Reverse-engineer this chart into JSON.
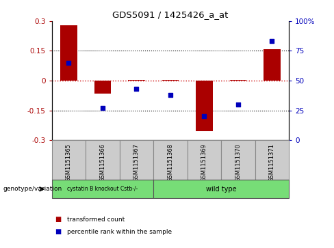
{
  "title": "GDS5091 / 1425426_a_at",
  "samples": [
    "GSM1151365",
    "GSM1151366",
    "GSM1151367",
    "GSM1151368",
    "GSM1151369",
    "GSM1151370",
    "GSM1151371"
  ],
  "bar_values": [
    0.28,
    -0.065,
    0.002,
    0.005,
    -0.255,
    0.003,
    0.16
  ],
  "dot_values": [
    65,
    27,
    43,
    38,
    20,
    30,
    83
  ],
  "ylim_left": [
    -0.3,
    0.3
  ],
  "ylim_right": [
    0,
    100
  ],
  "yticks_left": [
    -0.3,
    -0.15,
    0.0,
    0.15,
    0.3
  ],
  "yticks_right": [
    0,
    25,
    50,
    75,
    100
  ],
  "ytick_labels_left": [
    "-0.3",
    "-0.15",
    "0",
    "0.15",
    "0.3"
  ],
  "ytick_labels_right": [
    "0",
    "25",
    "50",
    "75",
    "100%"
  ],
  "bar_color": "#aa0000",
  "dot_color": "#0000bb",
  "zero_line_color": "#cc0000",
  "dot_line_color": "#cc0000",
  "grid_color": "#000000",
  "bg_plot": "#ffffff",
  "sample_box_color": "#cccccc",
  "sample_box_edge": "#888888",
  "group1_label": "cystatin B knockout Cstb-/-",
  "group2_label": "wild type",
  "group_color": "#77dd77",
  "group_edge": "#555555",
  "legend_bar_label": "transformed count",
  "legend_dot_label": "percentile rank within the sample",
  "genotype_label": "genotype/variation"
}
